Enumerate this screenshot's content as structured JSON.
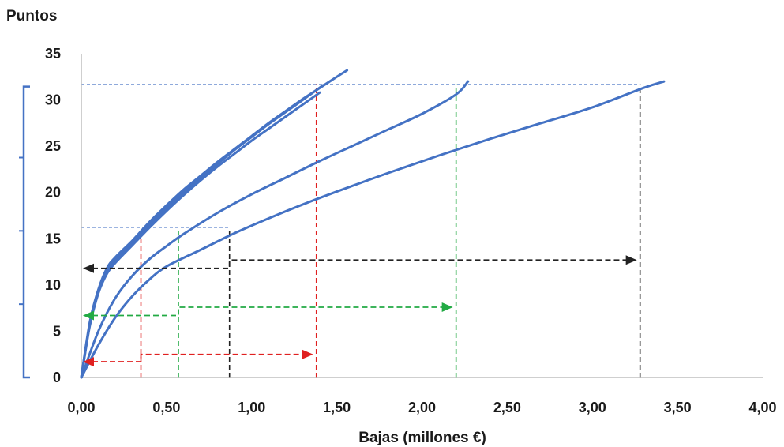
{
  "chart_data": {
    "type": "line",
    "title": "",
    "xlabel": "Bajas (millones €)",
    "ylabel": "Puntos",
    "xlim": [
      0,
      4
    ],
    "ylim": [
      0,
      35
    ],
    "x_ticks": [
      "0,00",
      "0,50",
      "1,00",
      "1,50",
      "2,00",
      "2,50",
      "3,00",
      "3,50",
      "4,00"
    ],
    "y_ticks": [
      "0",
      "5",
      "10",
      "15",
      "20",
      "25",
      "30",
      "35"
    ],
    "grid": false,
    "legend": "none",
    "series_color": "#4472c4",
    "series": [
      {
        "x": [
          0,
          0.05,
          0.1,
          0.15,
          0.2,
          0.3,
          0.4,
          0.5,
          0.6,
          0.7,
          0.8,
          0.9,
          1.0,
          1.1,
          1.2,
          1.3,
          1.4,
          1.5,
          1.56
        ],
        "y": [
          0,
          6,
          9.5,
          11.8,
          13,
          14.8,
          16.8,
          18.6,
          20.3,
          21.8,
          23.3,
          24.7,
          26.1,
          27.5,
          28.8,
          30.1,
          31.3,
          32.5,
          33.2
        ]
      },
      {
        "x": [
          0,
          0.05,
          0.1,
          0.15,
          0.2,
          0.3,
          0.4,
          0.5,
          0.6,
          0.7,
          0.8,
          0.9,
          1.0,
          1.1,
          1.2,
          1.3,
          1.42
        ],
        "y": [
          0,
          5.8,
          9.3,
          11.5,
          12.7,
          14.6,
          16.5,
          18.3,
          20,
          21.6,
          23.1,
          24.6,
          26,
          27.4,
          28.7,
          30,
          31.6
        ]
      },
      {
        "x": [
          0,
          0.05,
          0.1,
          0.15,
          0.2,
          0.3,
          0.4,
          0.5,
          0.6,
          0.7,
          0.8,
          0.9,
          1.0,
          1.1,
          1.2,
          1.3,
          1.4
        ],
        "y": [
          0,
          5.6,
          9.1,
          11.2,
          12.4,
          14.3,
          16.2,
          18,
          19.7,
          21.3,
          22.8,
          24.2,
          25.6,
          26.9,
          28.2,
          29.5,
          30.8
        ]
      },
      {
        "x": [
          0,
          0.1,
          0.2,
          0.3,
          0.4,
          0.5,
          0.6,
          0.8,
          1.0,
          1.2,
          1.4,
          1.6,
          1.8,
          2.0,
          2.2,
          2.27
        ],
        "y": [
          0,
          5,
          8.6,
          11,
          12.8,
          14.2,
          15.5,
          17.8,
          19.8,
          21.6,
          23.4,
          25.1,
          26.8,
          28.5,
          30.6,
          32
        ]
      },
      {
        "x": [
          0,
          0.1,
          0.2,
          0.3,
          0.4,
          0.5,
          0.7,
          0.9,
          1.1,
          1.3,
          1.5,
          1.8,
          2.1,
          2.4,
          2.7,
          3.0,
          3.3,
          3.42
        ],
        "y": [
          0,
          3.5,
          6.5,
          8.8,
          10.6,
          12,
          13.8,
          15.6,
          17.2,
          18.7,
          20.1,
          22.1,
          24,
          25.8,
          27.5,
          29.2,
          31.3,
          32
        ]
      }
    ],
    "reference_lines": {
      "horizontal": [
        {
          "y": 31.7,
          "x_from": 0,
          "x_to": 3.28,
          "color": "#8ea9db"
        },
        {
          "y": 16.2,
          "x_from": 0,
          "x_to": 0.87,
          "color": "#8ea9db"
        }
      ],
      "vertical": [
        {
          "x": 0.35,
          "y_from": 0,
          "y_to": 16.2,
          "color": "#e02020"
        },
        {
          "x": 1.38,
          "y_from": 0,
          "y_to": 31.7,
          "color": "#e02020"
        },
        {
          "x": 0.57,
          "y_from": 0,
          "y_to": 16.2,
          "color": "#22aa44"
        },
        {
          "x": 2.2,
          "y_from": 0,
          "y_to": 31.7,
          "color": "#22aa44"
        },
        {
          "x": 0.87,
          "y_from": 0,
          "y_to": 16.2,
          "color": "#222222"
        },
        {
          "x": 3.28,
          "y_from": 0,
          "y_to": 31.7,
          "color": "#222222"
        }
      ]
    },
    "range_arrows": [
      {
        "color": "#e02020",
        "left_y": 1.7,
        "step_x": 0.35,
        "right_y": 2.5,
        "right_x": 1.38
      },
      {
        "color": "#22aa44",
        "left_y": 6.7,
        "step_x": 0.57,
        "right_y": 7.6,
        "right_x": 2.2
      },
      {
        "color": "#222222",
        "left_y": 11.8,
        "step_x": 0.87,
        "right_y": 12.7,
        "right_x": 3.28
      }
    ],
    "side_bracket": {
      "color": "#4472c4",
      "y_from": 0,
      "y_to": 31.7
    }
  }
}
